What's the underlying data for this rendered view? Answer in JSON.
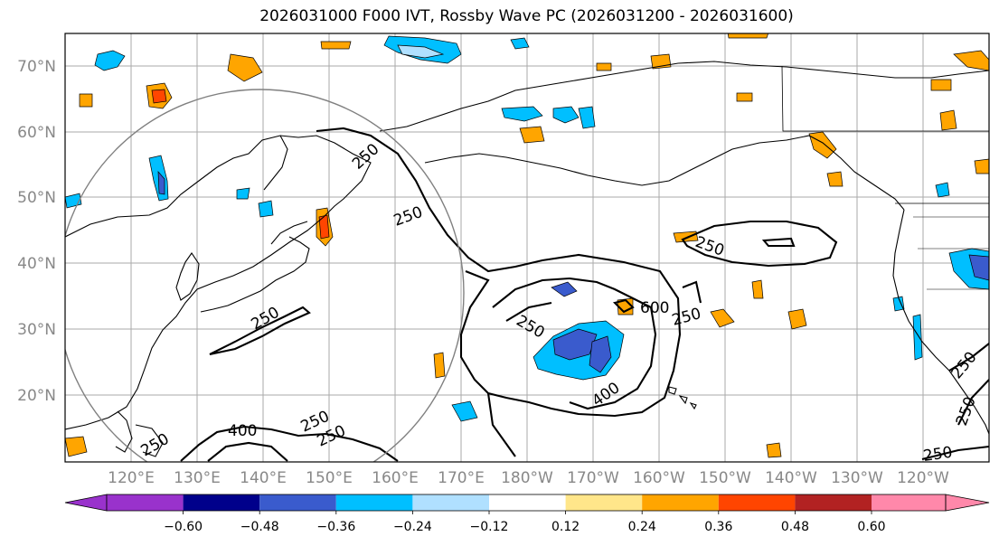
{
  "title": "2026031000 F000 IVT, Rossby Wave PC (2026031200 - 2026031600)",
  "lat_labels": [
    "70°N",
    "60°N",
    "50°N",
    "40°N",
    "30°N",
    "20°N"
  ],
  "lon_labels": [
    "120°E",
    "130°E",
    "140°E",
    "150°E",
    "160°E",
    "170°E",
    "180°W",
    "170°W",
    "160°W",
    "150°W",
    "140°W",
    "130°W",
    "120°W"
  ],
  "contour_labels": [
    "250",
    "250",
    "250",
    "250",
    "250",
    "250",
    "250",
    "250",
    "250",
    "250",
    "250",
    "250",
    "400",
    "400",
    "600"
  ],
  "colorbar": {
    "colors": [
      "#9932cc",
      "#00008b",
      "#3a5bcd",
      "#00bfff",
      "#b0e0ff",
      "#ffffff",
      "#ffe68a",
      "#ffa500",
      "#ff4500",
      "#b22222",
      "#ff88aa"
    ],
    "ticks": [
      "−0.60",
      "−0.48",
      "−0.36",
      "−0.24",
      "−0.12",
      "0.12",
      "0.24",
      "0.36",
      "0.48",
      "0.60"
    ]
  },
  "colors": {
    "gridline": "#aaaaaa",
    "circle": "#808080",
    "label": "#888888"
  }
}
